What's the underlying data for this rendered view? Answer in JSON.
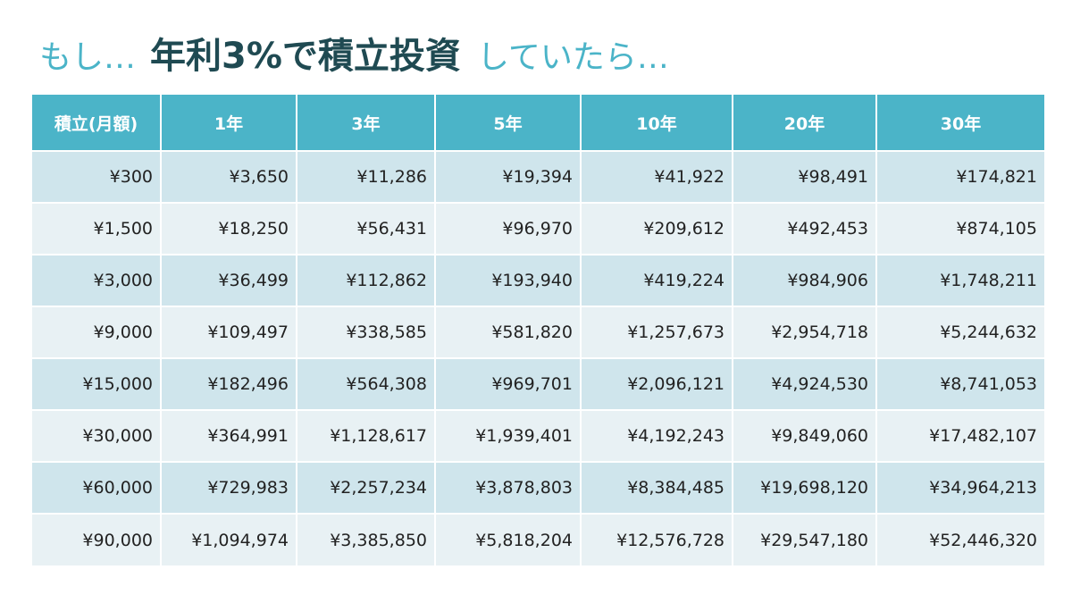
{
  "title": {
    "pre": "もし…",
    "main": "年利3%で積立投資",
    "post": "していたら…"
  },
  "table": {
    "headers": [
      "積立(月額)",
      "1年",
      "3年",
      "5年",
      "10年",
      "20年",
      "30年"
    ],
    "rows": [
      [
        "¥300",
        "¥3,650",
        "¥11,286",
        "¥19,394",
        "¥41,922",
        "¥98,491",
        "¥174,821"
      ],
      [
        "¥1,500",
        "¥18,250",
        "¥56,431",
        "¥96,970",
        "¥209,612",
        "¥492,453",
        "¥874,105"
      ],
      [
        "¥3,000",
        "¥36,499",
        "¥112,862",
        "¥193,940",
        "¥419,224",
        "¥984,906",
        "¥1,748,211"
      ],
      [
        "¥9,000",
        "¥109,497",
        "¥338,585",
        "¥581,820",
        "¥1,257,673",
        "¥2,954,718",
        "¥5,244,632"
      ],
      [
        "¥15,000",
        "¥182,496",
        "¥564,308",
        "¥969,701",
        "¥2,096,121",
        "¥4,924,530",
        "¥8,741,053"
      ],
      [
        "¥30,000",
        "¥364,991",
        "¥1,128,617",
        "¥1,939,401",
        "¥4,192,243",
        "¥9,849,060",
        "¥17,482,107"
      ],
      [
        "¥60,000",
        "¥729,983",
        "¥2,257,234",
        "¥3,878,803",
        "¥8,384,485",
        "¥19,698,120",
        "¥34,964,213"
      ],
      [
        "¥90,000",
        "¥1,094,974",
        "¥3,385,850",
        "¥5,818,204",
        "¥12,576,728",
        "¥29,547,180",
        "¥52,446,320"
      ]
    ]
  }
}
